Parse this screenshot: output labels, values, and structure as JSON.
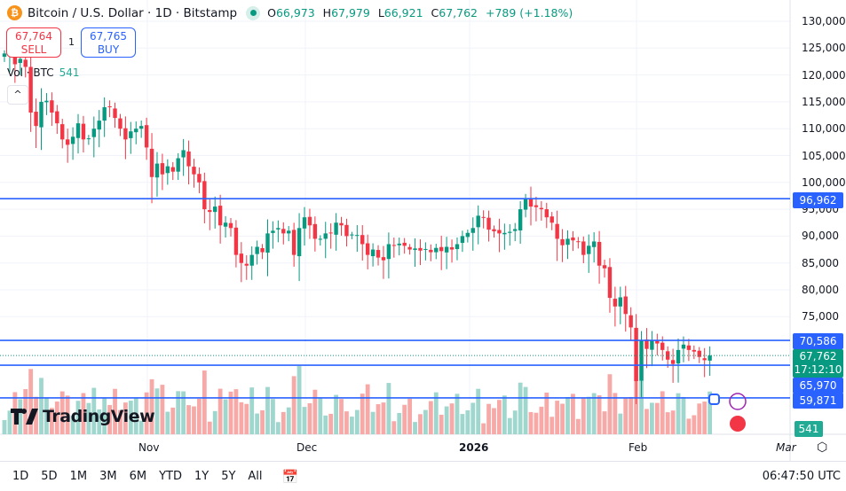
{
  "header": {
    "title": "Bitcoin / U.S. Dollar · 1D · Bitstamp",
    "open_label": "O",
    "open": "66,973",
    "high_label": "H",
    "high": "67,979",
    "low_label": "L",
    "low": "66,921",
    "close_label": "C",
    "close": "67,762",
    "change": "+789 (+1.18%)"
  },
  "trade": {
    "sell_price": "67,764",
    "sell_label": "SELL",
    "buy_price": "67,765",
    "buy_label": "BUY",
    "quantity": "1"
  },
  "volume": {
    "label": "Vol · BTC",
    "value": "541"
  },
  "logo": "TradingView",
  "price_axis": [
    "130,000",
    "125,000",
    "120,000",
    "115,000",
    "110,000",
    "105,000",
    "100,000",
    "95,000",
    "90,000",
    "85,000",
    "80,000",
    "75,000"
  ],
  "price_labels": {
    "level1": "96,962",
    "level2": "70,586",
    "current": "67,762",
    "countdown": "17:12:10",
    "level3": "65,970",
    "level4": "59,871",
    "volume": "541"
  },
  "time_axis": [
    "Nov",
    "Dec",
    "2026",
    "Feb",
    "Mar"
  ],
  "ranges": [
    "1D",
    "5D",
    "1M",
    "3M",
    "6M",
    "YTD",
    "1Y",
    "5Y",
    "All"
  ],
  "clock": "06:47:50 UTC",
  "colors": {
    "up": "#089981",
    "down": "#f23645",
    "line": "#2962ff"
  },
  "chart_data": {
    "type": "candlestick",
    "horizontal_lines": [
      96962,
      70586,
      65970,
      59871
    ],
    "current_price": 67762,
    "ylim": [
      60000,
      130000
    ],
    "first_date": "2025-10-05",
    "closes": [
      124000,
      125000,
      122000,
      123000,
      121500,
      113000,
      110500,
      115000,
      115200,
      113000,
      111000,
      108000,
      107000,
      108500,
      111000,
      108000,
      108200,
      110000,
      111500,
      114000,
      114000,
      112000,
      110000,
      108000,
      109500,
      110000,
      110500,
      106500,
      101000,
      103500,
      101500,
      103000,
      102000,
      104500,
      106000,
      103000,
      101500,
      100000,
      95000,
      94500,
      95500,
      92000,
      92500,
      91500,
      86500,
      85000,
      84500,
      86500,
      88000,
      87000,
      90500,
      91000,
      91500,
      90500,
      91000,
      86500,
      91500,
      93500,
      92000,
      89500,
      89500,
      90500,
      90500,
      92500,
      92000,
      90000,
      90300,
      90200,
      88500,
      86500,
      87500,
      86000,
      85500,
      88500,
      88300,
      88600,
      88200,
      87500,
      87700,
      87300,
      87600,
      87000,
      87800,
      87200,
      88000,
      87500,
      88500,
      90000,
      90600,
      91500,
      93800,
      93500,
      91200,
      90900,
      90500,
      90600,
      90800,
      91300,
      95000,
      97000,
      95500,
      95400,
      95000,
      93500,
      92500,
      89500,
      88300,
      89500,
      89200,
      89000,
      86500,
      88200,
      89000,
      84500,
      84000,
      78500,
      76900,
      78600,
      75500,
      73000,
      63000,
      70500,
      69000,
      70500,
      70000,
      68800,
      67000,
      66200,
      68800,
      69800,
      68800,
      68500,
      67500,
      66900,
      67762
    ]
  }
}
